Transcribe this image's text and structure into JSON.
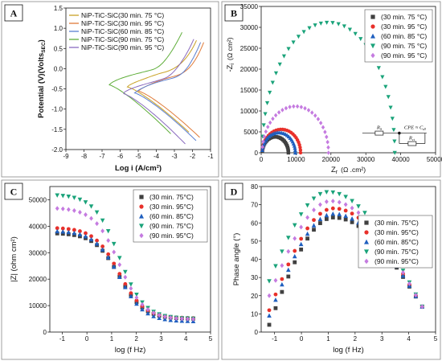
{
  "chart_data": [
    {
      "panel": "A",
      "type": "line",
      "title": "",
      "xlabel": "Log i (A/cm²)",
      "ylabel_main": "Potential (V)(Volts",
      "ylabel_sub": "SEC",
      "ylabel_end": ")",
      "xlim": [
        -9,
        -1
      ],
      "ylim": [
        -2.0,
        1.5
      ],
      "xticks": [
        -9,
        -8,
        -7,
        -6,
        -5,
        -4,
        -3,
        -2,
        -1
      ],
      "yticks": [
        -2.0,
        -1.5,
        -1.0,
        -0.5,
        0.0,
        0.5,
        1.0,
        1.5
      ],
      "xtick_labels": [
        "-9",
        "-8",
        "-7",
        "-6",
        "-5",
        "-4",
        "-3",
        "-2",
        "-1"
      ],
      "ytick_labels": [
        "-2.0",
        "-1.5",
        "-1.0",
        "-0.5",
        "0.0",
        "0.5",
        "1.0",
        "1.5"
      ],
      "legend_position": "top-left",
      "legend_prefix": "NiP-TiC-SiC",
      "series": [
        {
          "name": "NiP-TiC-SiC(30 min. 75 °C)",
          "color": "#c9a227",
          "ecorr": -0.45,
          "icorr": -5.6
        },
        {
          "name": "NiP-TiC-SiC(30 min. 95 °C)",
          "color": "#e07b39",
          "ecorr": -0.55,
          "icorr": -5.0
        },
        {
          "name": "NiP-TiC-SiC(60 min. 85 °C)",
          "color": "#5b7fd1",
          "ecorr": -0.6,
          "icorr": -5.2
        },
        {
          "name": "NiP-TiC-SiC(90 min. 75 °C)",
          "color": "#5fae3a",
          "ecorr": -0.4,
          "icorr": -6.6
        },
        {
          "name": "NiP-TiC-SiC(90 min. 95 °C)",
          "color": "#8a6bbf",
          "ecorr": -0.62,
          "icorr": -5.8
        }
      ]
    },
    {
      "panel": "B",
      "type": "scatter",
      "title": "",
      "xlabel_main": "Z",
      "xlabel_sub": "r",
      "xlabel_unit": "(Ω .cm²)",
      "ylabel": "-Z",
      "ylabel_sub": "i",
      "ylabel_unit": "(Ω cm²)",
      "xlim": [
        0,
        50000
      ],
      "ylim": [
        0,
        35000
      ],
      "xticks": [
        0,
        10000,
        20000,
        30000,
        40000,
        50000
      ],
      "yticks": [
        0,
        5000,
        10000,
        15000,
        20000,
        25000,
        30000,
        35000
      ],
      "legend_position": "top-right",
      "series": [
        {
          "name": "(30 min. 75 °C)",
          "marker": "square",
          "color": "#404040",
          "rct": 7500
        },
        {
          "name": "(30 min. 95 °C)",
          "marker": "circle",
          "color": "#e8302a",
          "rct": 11000
        },
        {
          "name": "(60 min. 85 °C)",
          "marker": "triangle-up",
          "color": "#1f5fbf",
          "rct": 9500
        },
        {
          "name": "(90 min. 75 °C)",
          "marker": "triangle-down",
          "color": "#1aa37a",
          "rct": 38000
        },
        {
          "name": "(90 min. 95 °C)",
          "marker": "diamond",
          "color": "#c57be0",
          "rct": 19000
        }
      ],
      "circuit": {
        "rs": "R",
        "rs_sub": "S",
        "cpe": "CPE ≈ C",
        "cpe_sub": "dl",
        "rct": "R",
        "rct_sub": "ct"
      }
    },
    {
      "panel": "C",
      "type": "scatter",
      "title": "",
      "xlabel": "log (f Hz)",
      "ylabel": "|Z| (ohm cm²)",
      "xlim": [
        -1.5,
        5
      ],
      "ylim": [
        0,
        55000
      ],
      "xticks": [
        -1,
        0,
        1,
        2,
        3,
        4,
        5
      ],
      "yticks": [
        0,
        10000,
        20000,
        30000,
        40000,
        50000
      ],
      "legend_position": "top-right",
      "series": [
        {
          "name": "(30 min. 75°C)",
          "marker": "square",
          "color": "#404040",
          "z_low": 37500,
          "z_high": 5000
        },
        {
          "name": "(30 min. 95°C)",
          "marker": "circle",
          "color": "#e8302a",
          "z_low": 39500,
          "z_high": 5200
        },
        {
          "name": "(60 min. 85°C)",
          "marker": "triangle-up",
          "color": "#1f5fbf",
          "z_low": 38300,
          "z_high": 4000
        },
        {
          "name": "(90 min. 75°C)",
          "marker": "triangle-down",
          "color": "#1aa37a",
          "z_low": 52000,
          "z_high": 5000
        },
        {
          "name": "(90 min. 95°C)",
          "marker": "diamond",
          "color": "#c57be0",
          "z_low": 47000,
          "z_high": 4800
        }
      ]
    },
    {
      "panel": "D",
      "type": "scatter",
      "title": "",
      "xlabel": "log (f Hz)",
      "ylabel": "Phase angle (°)",
      "xlim": [
        -1.5,
        5
      ],
      "ylim": [
        0,
        80
      ],
      "xticks": [
        -1,
        0,
        1,
        2,
        3,
        4,
        5
      ],
      "yticks": [
        0,
        10,
        20,
        30,
        40,
        50,
        60,
        70,
        80
      ],
      "legend_position": "top-right",
      "series": [
        {
          "name": "(30 min. 75°C)",
          "marker": "square",
          "color": "#404040",
          "start": 4,
          "peak": 63,
          "peak_x": 1.2
        },
        {
          "name": "(30 min. 95°C)",
          "marker": "circle",
          "color": "#e8302a",
          "start": 12,
          "peak": 68,
          "peak_x": 1.2
        },
        {
          "name": "(60 min. 85°C)",
          "marker": "triangle-up",
          "color": "#1f5fbf",
          "start": 9,
          "peak": 65,
          "peak_x": 1.2
        },
        {
          "name": "(90 min. 75°C)",
          "marker": "triangle-down",
          "color": "#1aa37a",
          "start": 28,
          "peak": 77,
          "peak_x": 1.0
        },
        {
          "name": "(90 min. 95°C)",
          "marker": "diamond",
          "color": "#c57be0",
          "start": 20,
          "peak": 72,
          "peak_x": 1.1
        }
      ]
    }
  ]
}
